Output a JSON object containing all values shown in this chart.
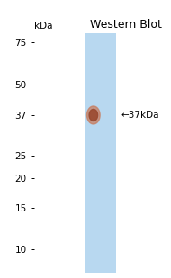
{
  "title": "Western Blot",
  "title_fontsize": 9,
  "lane_color": "#b8d8f0",
  "background_color": "#ffffff",
  "kda_labels": [
    75,
    50,
    37,
    25,
    20,
    15,
    10
  ],
  "band_kda": 37,
  "band_color_center": "#9a4a30",
  "band_color_edge": "#b86848",
  "band_color_outer": "#c87858",
  "arrow_label": "←37kDa",
  "ylabel_kda": "kDa",
  "y_min": 8,
  "y_max": 82,
  "arrow_fontsize": 7.5,
  "tick_fontsize": 7.5,
  "kda_fontsize": 7.5
}
